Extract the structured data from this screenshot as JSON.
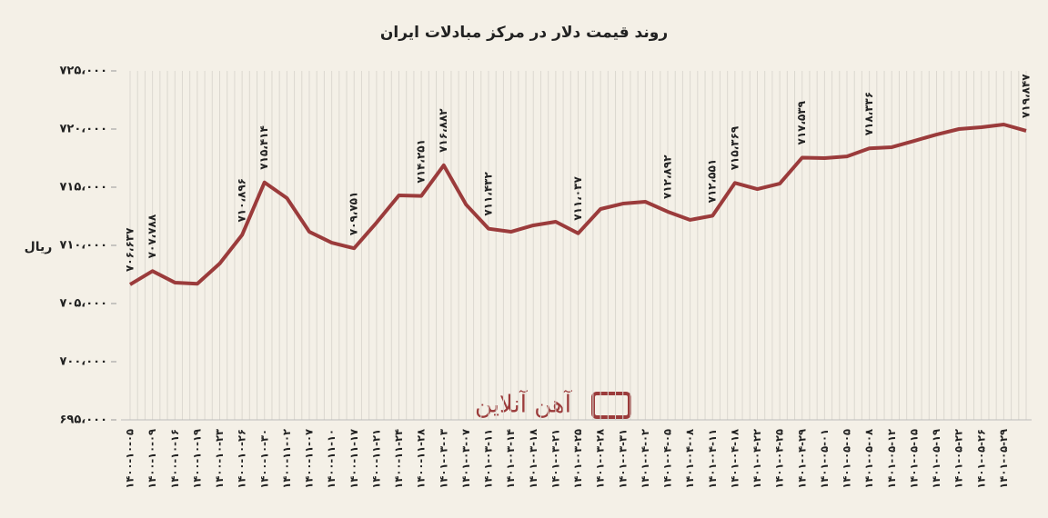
{
  "chart_data": {
    "type": "line",
    "title": "روند قیمت دلار در مرکز مبادلات ایران",
    "y_label": "ریال",
    "watermark": "آهن آنلاین",
    "categories": [
      "۱۴۰۰-۱۰-۰۵",
      "۱۴۰۰-۱۰-۰۹",
      "۱۴۰۰-۱۰-۱۶",
      "۱۴۰۰-۱۰-۱۹",
      "۱۴۰۰-۱۰-۲۳",
      "۱۴۰۰-۱۰-۲۶",
      "۱۴۰۰-۱۰-۳۰",
      "۱۴۰۰-۱۱-۰۲",
      "۱۴۰۰-۱۱-۰۷",
      "۱۴۰۰-۱۱-۱۰",
      "۱۴۰۰-۱۱-۱۷",
      "۱۴۰۰-۱۱-۲۱",
      "۱۴۰۰-۱۱-۲۴",
      "۱۴۰۰-۱۱-۲۸",
      "۱۴۰۱-۰۳-۰۳",
      "۱۴۰۱-۰۳-۰۷",
      "۱۴۰۱-۰۳-۱۱",
      "۱۴۰۱-۰۳-۱۴",
      "۱۴۰۱-۰۳-۱۸",
      "۱۴۰۱-۰۳-۲۱",
      "۱۴۰۱-۰۳-۲۵",
      "۱۴۰۱-۰۳-۲۸",
      "۱۴۰۱-۰۳-۳۱",
      "۱۴۰۱-۰۴-۰۲",
      "۱۴۰۱-۰۴-۰۵",
      "۱۴۰۱-۰۴-۰۸",
      "۱۴۰۱-۰۴-۱۱",
      "۱۴۰۱-۰۴-۱۸",
      "۱۴۰۱-۰۴-۲۲",
      "۱۴۰۱-۰۴-۲۵",
      "۱۴۰۱-۰۴-۲۹",
      "۱۴۰۱-۰۵-۰۱",
      "۱۴۰۱-۰۵-۰۵",
      "۱۴۰۱-۰۵-۰۸",
      "۱۴۰۱-۰۵-۱۲",
      "۱۴۰۱-۰۵-۱۵",
      "۱۴۰۱-۰۵-۱۹",
      "۱۴۰۱-۰۵-۲۲",
      "۱۴۰۱-۰۵-۲۶",
      "۱۴۰۱-۰۵-۲۹",
      null
    ],
    "series": [
      {
        "name": "دلار",
        "color": "#9b3b3b",
        "values": [
          706637,
          707788,
          706800,
          706700,
          708440,
          710896,
          715414,
          714060,
          711170,
          710230,
          709751,
          711950,
          714300,
          714251,
          716882,
          713500,
          711432,
          711170,
          711720,
          712030,
          711037,
          713125,
          713590,
          713750,
          712892,
          712190,
          712551,
          715369,
          714840,
          715310,
          717539,
          717500,
          717650,
          718336,
          718440,
          718980,
          719530,
          720000,
          720160,
          720390,
          719847
        ],
        "value_labels": [
          "۷۰۶،۶۳۷",
          "۷۰۷،۷۸۸",
          null,
          null,
          null,
          "۷۱۰،۸۹۶",
          "۷۱۵،۴۱۴",
          null,
          null,
          null,
          "۷۰۹،۷۵۱",
          null,
          null,
          "۷۱۴،۲۵۱",
          "۷۱۶،۸۸۲",
          null,
          "۷۱۱،۴۳۲",
          null,
          null,
          null,
          "۷۱۱،۰۳۷",
          null,
          null,
          null,
          "۷۱۲،۸۹۲",
          null,
          "۷۱۲،۵۵۱",
          "۷۱۵،۳۶۹",
          null,
          null,
          "۷۱۷،۵۳۹",
          null,
          null,
          "۷۱۸،۳۳۶",
          null,
          null,
          null,
          null,
          null,
          null,
          "۷۱۹،۸۴۷"
        ]
      }
    ],
    "ylim": [
      695000,
      725000
    ],
    "yticks": [
      {
        "value": 695000,
        "label": "۶۹۵،۰۰۰"
      },
      {
        "value": 700000,
        "label": "۷۰۰،۰۰۰"
      },
      {
        "value": 705000,
        "label": "۷۰۵،۰۰۰"
      },
      {
        "value": 710000,
        "label": "۷۱۰،۰۰۰"
      },
      {
        "value": 715000,
        "label": "۷۱۵،۰۰۰"
      },
      {
        "value": 720000,
        "label": "۷۲۰،۰۰۰"
      },
      {
        "value": 725000,
        "label": "۷۲۵،۰۰۰"
      }
    ],
    "grid": true
  }
}
